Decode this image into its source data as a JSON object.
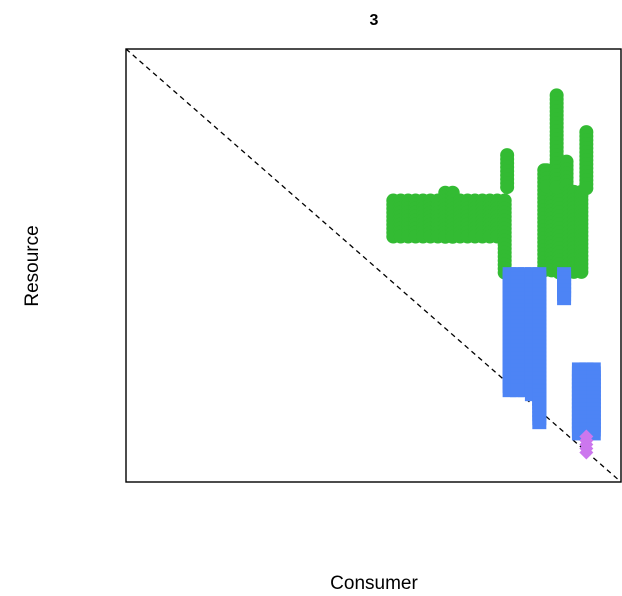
{
  "chart_data": {
    "type": "scatter",
    "title": "3",
    "xlabel": "Consumer",
    "ylabel": "Resource",
    "xlim": [
      0,
      1
    ],
    "ylim": [
      0,
      1
    ],
    "axis_ticks": false,
    "grid": false,
    "reference_line": {
      "style": "dashed",
      "color": "#000000",
      "from": [
        0,
        1
      ],
      "to": [
        1,
        0
      ]
    },
    "series": [
      {
        "marker": "circle",
        "color": "#33BB33",
        "segments": [
          {
            "x": 0.54,
            "y0": 0.56,
            "y1": 0.65
          },
          {
            "x": 0.555,
            "y0": 0.56,
            "y1": 0.65
          },
          {
            "x": 0.57,
            "y0": 0.56,
            "y1": 0.65
          },
          {
            "x": 0.585,
            "y0": 0.56,
            "y1": 0.65
          },
          {
            "x": 0.6,
            "y0": 0.56,
            "y1": 0.65
          },
          {
            "x": 0.615,
            "y0": 0.56,
            "y1": 0.65
          },
          {
            "x": 0.63,
            "y0": 0.56,
            "y1": 0.65
          },
          {
            "x": 0.645,
            "y0": 0.56,
            "y1": 0.668
          },
          {
            "x": 0.66,
            "y0": 0.56,
            "y1": 0.668
          },
          {
            "x": 0.675,
            "y0": 0.56,
            "y1": 0.65
          },
          {
            "x": 0.69,
            "y0": 0.56,
            "y1": 0.65
          },
          {
            "x": 0.705,
            "y0": 0.56,
            "y1": 0.65
          },
          {
            "x": 0.72,
            "y0": 0.56,
            "y1": 0.65
          },
          {
            "x": 0.735,
            "y0": 0.56,
            "y1": 0.65
          },
          {
            "x": 0.75,
            "y0": 0.56,
            "y1": 0.65
          },
          {
            "x": 0.765,
            "y0": 0.48,
            "y1": 0.65
          },
          {
            "x": 0.77,
            "y0": 0.68,
            "y1": 0.755
          },
          {
            "x": 0.845,
            "y0": 0.48,
            "y1": 0.72
          },
          {
            "x": 0.86,
            "y0": 0.48,
            "y1": 0.655
          },
          {
            "x": 0.875,
            "y0": 0.48,
            "y1": 0.678
          },
          {
            "x": 0.85,
            "y0": 0.68,
            "y1": 0.72
          },
          {
            "x": 0.87,
            "y0": 0.68,
            "y1": 0.893
          },
          {
            "x": 0.89,
            "y0": 0.68,
            "y1": 0.74
          },
          {
            "x": 0.895,
            "y0": 0.48,
            "y1": 0.67
          },
          {
            "x": 0.905,
            "y0": 0.48,
            "y1": 0.67
          },
          {
            "x": 0.92,
            "y0": 0.48,
            "y1": 0.67
          },
          {
            "x": 0.93,
            "y0": 0.67,
            "y1": 0.808
          }
        ]
      },
      {
        "marker": "square",
        "color": "#4D84F5",
        "segments": [
          {
            "x": 0.775,
            "y0": 0.21,
            "y1": 0.48
          },
          {
            "x": 0.79,
            "y0": 0.21,
            "y1": 0.48
          },
          {
            "x": 0.805,
            "y0": 0.21,
            "y1": 0.48
          },
          {
            "x": 0.82,
            "y0": 0.2,
            "y1": 0.48
          },
          {
            "x": 0.835,
            "y0": 0.13,
            "y1": 0.48
          },
          {
            "x": 0.835,
            "y0": 0.18,
            "y1": 0.21
          },
          {
            "x": 0.885,
            "y0": 0.42,
            "y1": 0.48
          },
          {
            "x": 0.915,
            "y0": 0.11,
            "y1": 0.26
          },
          {
            "x": 0.93,
            "y0": 0.11,
            "y1": 0.26
          },
          {
            "x": 0.945,
            "y0": 0.11,
            "y1": 0.26
          }
        ]
      },
      {
        "marker": "diamond",
        "color": "#CC77EE",
        "segments": [
          {
            "x": 0.93,
            "y0": 0.06,
            "y1": 0.105
          }
        ]
      }
    ]
  }
}
